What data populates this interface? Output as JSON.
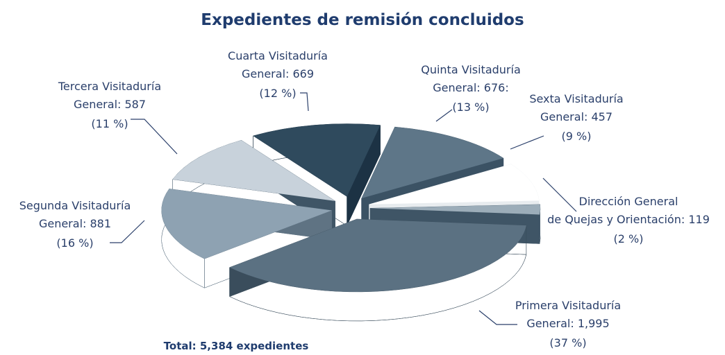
{
  "chart_data": {
    "type": "pie",
    "title": "Expedientes de remisión concluidos",
    "categories": [
      "Primera Visitaduría\nGeneral:",
      "Segunda Visitaduría\nGeneral:",
      "Tercera Visitaduría\nGeneral:",
      "Cuarta Visitaduría\nGeneral:",
      "Quinta Visitaduría\nGeneral:",
      "Sexta Visitaduría\nGeneral:",
      "Dirección General\nde Quejas y Orientación:"
    ],
    "values": [
      1995,
      881,
      587,
      669,
      676,
      457,
      119
    ],
    "value_labels": [
      "1,995",
      "881",
      "587",
      "669",
      "676:",
      "457",
      "119"
    ],
    "percent_labels": [
      "(37 %)",
      "(16 %)",
      "(11 %)",
      "(12 %)",
      "(13 %)",
      "(9 %)",
      "(2 %)"
    ],
    "colors": [
      "#5b7182",
      "#8ea2b2",
      "#c8d2db",
      "#2f4a5d",
      "#5e7688",
      "#ffffff",
      "#9cadb9"
    ],
    "side_colors": [
      "#3a4d5c",
      "#5f7383",
      "#3f5566",
      "#1c3244",
      "#3b5264",
      "#e8ecef",
      "#3f5566"
    ],
    "total_label": "Total: 5,384 expedientes"
  }
}
